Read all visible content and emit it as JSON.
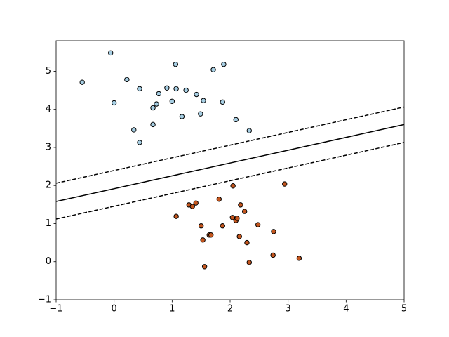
{
  "chart_data": {
    "type": "scatter",
    "xlim": [
      -1,
      5
    ],
    "ylim": [
      -1,
      5.8
    ],
    "xticks": [
      {
        "value": -1,
        "label": "−1"
      },
      0,
      1,
      2,
      3,
      4,
      5
    ],
    "yticks": [
      {
        "value": -1,
        "label": "−1"
      },
      0,
      1,
      2,
      3,
      4,
      5
    ],
    "edgecolor": "#000000",
    "series": [
      {
        "color": "#a6cee3",
        "x": [
          -0.55,
          -0.06,
          0.0,
          0.22,
          0.44,
          0.34,
          0.44,
          0.67,
          0.73,
          0.77,
          0.67,
          0.91,
          1.0,
          1.06,
          1.07,
          1.17,
          1.24,
          1.42,
          1.49,
          1.54,
          1.71,
          1.89,
          1.87,
          2.1,
          2.33
        ],
        "values": [
          4.71,
          5.48,
          4.17,
          4.78,
          4.54,
          3.46,
          3.13,
          4.04,
          4.14,
          4.41,
          3.6,
          4.56,
          4.21,
          5.18,
          4.54,
          3.81,
          4.5,
          4.39,
          3.88,
          4.23,
          5.04,
          5.18,
          4.19,
          3.73,
          3.44
        ]
      },
      {
        "color": "#c4561e",
        "x": [
          1.07,
          1.29,
          1.35,
          1.41,
          1.5,
          1.53,
          1.56,
          1.64,
          1.67,
          1.81,
          1.87,
          2.05,
          2.04,
          2.1,
          2.12,
          2.18,
          2.16,
          2.25,
          2.29,
          2.33,
          2.48,
          2.75,
          2.74,
          2.94,
          3.19
        ],
        "values": [
          1.19,
          1.49,
          1.45,
          1.54,
          0.94,
          0.57,
          -0.13,
          0.7,
          0.7,
          1.64,
          0.94,
          1.99,
          1.16,
          1.08,
          1.14,
          1.49,
          0.66,
          1.32,
          0.5,
          -0.02,
          0.97,
          0.79,
          0.17,
          2.04,
          0.09
        ]
      }
    ],
    "lines": [
      {
        "style": "dashed",
        "color": "#000000",
        "x": [
          -1,
          5
        ],
        "values": [
          2.06,
          4.06
        ]
      },
      {
        "style": "solid",
        "color": "#000000",
        "x": [
          -1,
          5
        ],
        "values": [
          1.58,
          3.6
        ]
      },
      {
        "style": "dashed",
        "color": "#000000",
        "x": [
          -1,
          5
        ],
        "values": [
          1.12,
          3.13
        ]
      }
    ]
  }
}
